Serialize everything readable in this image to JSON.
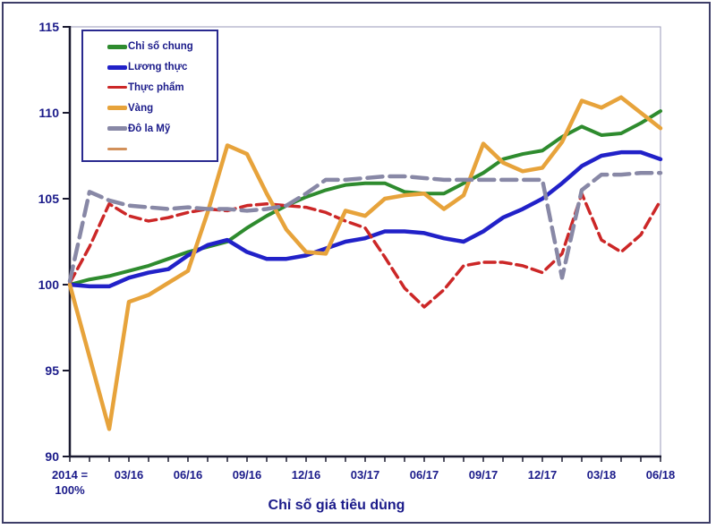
{
  "chart_data": {
    "type": "line",
    "title": "Chỉ số giá tiêu dùng",
    "ylim": [
      90,
      115
    ],
    "y_step": 5,
    "y_tick_labels": [
      "90",
      "95",
      "100",
      "105",
      "110",
      "115"
    ],
    "x_tick_labels": [
      "2014 =\n100%",
      "03/16",
      "06/16",
      "09/16",
      "12/16",
      "03/17",
      "06/17",
      "09/17",
      "12/17",
      "03/18",
      "06/18"
    ],
    "x_tick_positions": [
      0,
      3,
      6,
      9,
      12,
      15,
      18,
      21,
      24,
      27,
      30
    ],
    "n_points": 31,
    "grid": "off",
    "legend_position": "top-left",
    "axis_color": "#1a1a30",
    "frame_color": "#9a9ab8",
    "text_color": "#1b1b8a",
    "series": [
      {
        "name": "Chỉ số chung",
        "color": "#2e8b2e",
        "style": "solid",
        "width": 4,
        "values": [
          100,
          100.3,
          100.5,
          100.8,
          101.1,
          101.5,
          101.9,
          102.2,
          102.5,
          103.3,
          104,
          104.6,
          105.1,
          105.5,
          105.8,
          105.9,
          105.9,
          105.4,
          105.3,
          105.3,
          105.9,
          106.5,
          107.3,
          107.6,
          107.8,
          108.6,
          109.2,
          108.7,
          108.8,
          109.4,
          110.1
        ]
      },
      {
        "name": "Lương thực",
        "color": "#2121c8",
        "style": "solid",
        "width": 4.5,
        "values": [
          100,
          99.9,
          99.9,
          100.4,
          100.7,
          100.9,
          101.7,
          102.3,
          102.6,
          101.9,
          101.5,
          101.5,
          101.7,
          102.1,
          102.5,
          102.7,
          103.1,
          103.1,
          103,
          102.7,
          102.5,
          103.1,
          103.9,
          104.4,
          105,
          105.9,
          106.9,
          107.5,
          107.7,
          107.7,
          107.3
        ]
      },
      {
        "name": "Thực phẩm",
        "color": "#cc2727",
        "style": "dash",
        "width": 3.5,
        "values": [
          100.1,
          102.2,
          104.7,
          104,
          103.7,
          103.9,
          104.2,
          104.4,
          104.3,
          104.6,
          104.7,
          104.6,
          104.5,
          104.2,
          103.7,
          103.3,
          101.6,
          99.8,
          98.7,
          99.7,
          101.1,
          101.3,
          101.3,
          101.1,
          100.7,
          101.8,
          105.3,
          102.6,
          101.9,
          102.9,
          104.9
        ]
      },
      {
        "name": "Vàng",
        "color": "#e7a33b",
        "style": "solid",
        "width": 4.5,
        "values": [
          100,
          95.8,
          91.6,
          99,
          99.4,
          100.1,
          100.8,
          104.2,
          108.1,
          107.6,
          105.3,
          103.2,
          101.9,
          101.8,
          104.3,
          104,
          105,
          105.2,
          105.3,
          104.4,
          105.2,
          108.2,
          107.1,
          106.6,
          106.8,
          108.3,
          110.7,
          110.3,
          110.9,
          110,
          109.1
        ]
      },
      {
        "name": "Đô la Mỹ",
        "color": "#8888a6",
        "style": "long-dash",
        "width": 4.5,
        "values": [
          100.2,
          105.4,
          104.9,
          104.6,
          104.5,
          104.4,
          104.5,
          104.4,
          104.4,
          104.3,
          104.4,
          104.6,
          105.3,
          106.1,
          106.1,
          106.2,
          106.3,
          106.3,
          106.2,
          106.1,
          106.1,
          106.1,
          106.1,
          106.1,
          106.1,
          100.4,
          105.5,
          106.4,
          106.4,
          106.5,
          106.5
        ]
      },
      {
        "name": "",
        "color": "#d2905a",
        "style": "solid",
        "width": 2.5,
        "values": []
      }
    ]
  }
}
